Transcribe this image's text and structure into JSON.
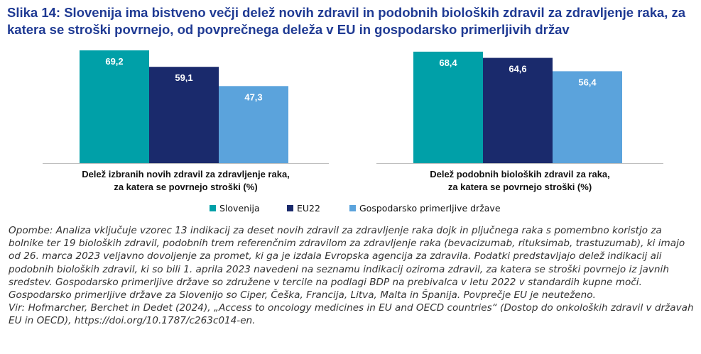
{
  "title": "Slika 14: Slovenija ima bistveno večji delež novih zdravil in podobnih bioloških zdravil za zdravljenje raka, za katera se stroški povrnejo, od povprečnega deleža v EU in gospodarsko primerljivih držav",
  "colors": {
    "title": "#1f3a93",
    "Slovenija": "#00a0a8",
    "EU22": "#1a2a6c",
    "Gospodarsko primerljive države": "#5ba3dc"
  },
  "chart_data": {
    "type": "bar",
    "categories": [
      "Delež izbranih novih zdravil za zdravljenje raka, za katera se povrnejo stroški (%)",
      "Delež podobnih bioloških zdravil za raka, za katera se povrnejo stroški (%)"
    ],
    "category_lines": [
      [
        "Delež izbranih novih zdravil za zdravljenje raka,",
        "za katera se povrnejo stroški (%)"
      ],
      [
        "Delež podobnih bioloških zdravil za raka,",
        "za katera se povrnejo stroški (%)"
      ]
    ],
    "series": [
      {
        "name": "Slovenija",
        "values": [
          69.2,
          68.4
        ],
        "labels": [
          "69,2",
          "68,4"
        ]
      },
      {
        "name": "EU22",
        "values": [
          59.1,
          64.6
        ],
        "labels": [
          "59,1",
          "64,6"
        ]
      },
      {
        "name": "Gospodarsko primerljive države",
        "values": [
          47.3,
          56.4
        ],
        "labels": [
          "47,3",
          "56,4"
        ]
      }
    ],
    "ylim": [
      0,
      70
    ],
    "grid": false,
    "legend_position": "bottom"
  },
  "notes": [
    "Opombe: Analiza vključuje vzorec 13 indikacij za deset novih zdravil za zdravljenje raka dojk in pljučnega raka s pomembno koristjo za bolnike ter 19 bioloških zdravil, podobnih trem referenčnim zdravilom za zdravljenje raka (bevacizumab, rituksimab, trastuzumab), ki imajo od 26. marca 2023 veljavno dovoljenje za promet, ki ga je izdala Evropska agencija za zdravila. Podatki predstavljajo delež indikacij ali podobnih bioloških zdravil, ki so bili 1. aprila 2023 navedeni na seznamu indikacij oziroma zdravil, za katera se stroški povrnejo iz javnih sredstev. Gospodarsko primerljive države so združene v tercile na podlagi BDP na prebivalca v letu 2022 v standardih kupne moči. Gospodarsko primerljive države za Slovenijo so Ciper, Češka, Francija, Litva, Malta in Španija. Povprečje EU je neuteženo.",
    "Vir: Hofmarcher, Berchet in Dedet (2024), „Access to oncology medicines in EU and OECD countries“ (Dostop do onkoloških zdravil v državah EU in OECD), https://doi.org/10.1787/c263c014-en."
  ]
}
